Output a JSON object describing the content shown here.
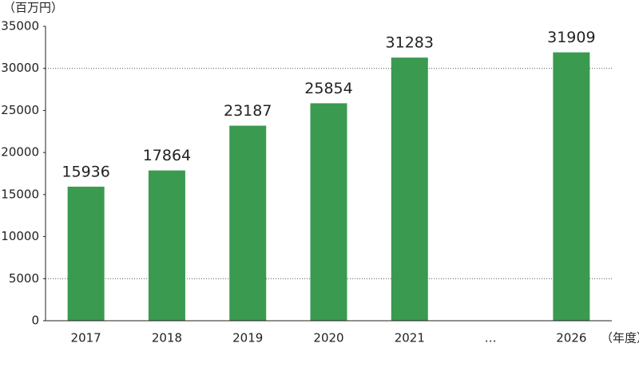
{
  "chart_data": {
    "type": "bar",
    "y_label": "（百万円）",
    "x_label": "（年度）",
    "categories": [
      "2017",
      "2018",
      "2019",
      "2020",
      "2021",
      "…",
      "2026"
    ],
    "values": [
      15936,
      17864,
      23187,
      25854,
      31283,
      null,
      31909
    ],
    "color": "#3a9a4f",
    "ylim": [
      0,
      35000
    ],
    "yticks": [
      0,
      5000,
      10000,
      15000,
      20000,
      25000,
      30000,
      35000
    ],
    "grid_at": [
      5000,
      30000
    ]
  }
}
